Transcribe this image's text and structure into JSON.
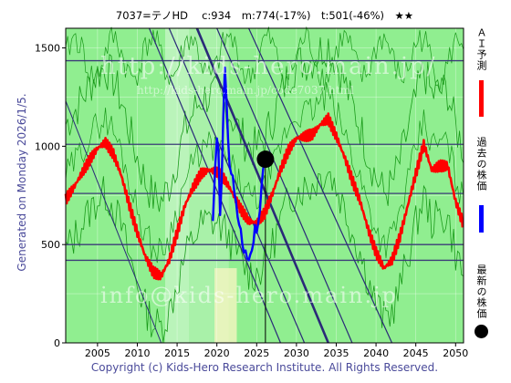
{
  "title": "7037=テノHD　 c:934　m:774(-17%)　t:501(-46%)　★★",
  "ylabel": "Generated on Monday 2026/1/5.",
  "footer": "Copyright (c) Kids-Hero Research Institute. All Rights Reserved.",
  "legend": {
    "forecast": "ＡＩ予測",
    "past": "過去の株価",
    "latest": "最新の株価"
  },
  "watermarks": {
    "main": "http://kids-hero.main.jp/",
    "sub": "http://kids-hero.main.jp/code7037.html",
    "bottom": "info@kids-hero.main.jp"
  },
  "colors": {
    "forecast": "#ff0000",
    "past": "#0000ff",
    "latest": "#000000",
    "plot_bg": "#90ee90",
    "band": "#c8f5c8",
    "trend": "#2a2a78",
    "hline": "#3c3c78",
    "green_line": "#1a9a1a"
  },
  "chart_data": {
    "type": "line",
    "xlim": [
      2001,
      2051
    ],
    "ylim": [
      0,
      1600
    ],
    "x_ticks": [
      2005,
      2010,
      2015,
      2020,
      2025,
      2030,
      2035,
      2040,
      2045,
      2050
    ],
    "y_ticks": [
      0,
      500,
      1000,
      1500
    ],
    "current_price": 934,
    "m_target": 774,
    "t_target": 501,
    "latest_point": {
      "x": 2026.1,
      "y": 934
    },
    "horizontal_lines": [
      1435,
      1010,
      760,
      500,
      420
    ],
    "forecast_series": {
      "name": "ＡＩ予測",
      "x": [
        2001.0,
        2002.0,
        2003.0,
        2004.0,
        2005.0,
        2006.0,
        2007.0,
        2008.0,
        2009.0,
        2010.0,
        2011.0,
        2012.0,
        2013.0,
        2014.0,
        2015.0,
        2016.0,
        2017.0,
        2018.0,
        2019.0,
        2020.0,
        2021.0,
        2022.0,
        2023.0,
        2024.0,
        2025.0,
        2026.0,
        2027.0,
        2028.0,
        2029.0,
        2030.0,
        2031.0,
        2032.0,
        2033.0,
        2034.0,
        2035.0,
        2036.0,
        2037.0,
        2038.0,
        2039.0,
        2040.0,
        2041.0,
        2042.0,
        2043.0,
        2044.0,
        2045.0,
        2046.0,
        2047.0,
        2048.0,
        2049.0,
        2050.0,
        2051.0
      ],
      "y": [
        730,
        790,
        860,
        930,
        990,
        1020,
        960,
        850,
        700,
        560,
        440,
        360,
        340,
        420,
        560,
        700,
        790,
        860,
        880,
        870,
        830,
        760,
        680,
        620,
        610,
        660,
        760,
        880,
        980,
        1040,
        1050,
        1060,
        1110,
        1140,
        1050,
        950,
        830,
        720,
        580,
        460,
        380,
        420,
        540,
        700,
        860,
        1010,
        880,
        900,
        900,
        720,
        600
      ]
    },
    "past_series": {
      "name": "過去の株価",
      "x": [
        2019.5,
        2019.8,
        2020.0,
        2020.2,
        2020.4,
        2020.6,
        2020.8,
        2021.0,
        2021.2,
        2021.4,
        2021.6,
        2021.8,
        2022.0,
        2022.2,
        2022.4,
        2022.6,
        2022.8,
        2023.0,
        2023.2,
        2023.4,
        2023.6,
        2023.8,
        2024.0,
        2024.2,
        2024.4,
        2024.6,
        2024.8,
        2025.0,
        2025.2,
        2025.4,
        2025.6,
        2025.8,
        2026.0
      ],
      "y": [
        620,
        900,
        1040,
        980,
        650,
        820,
        1150,
        1400,
        1250,
        1040,
        900,
        860,
        850,
        760,
        720,
        640,
        600,
        580,
        500,
        460,
        470,
        430,
        420,
        450,
        470,
        510,
        600,
        560,
        610,
        670,
        790,
        880,
        934
      ]
    }
  }
}
